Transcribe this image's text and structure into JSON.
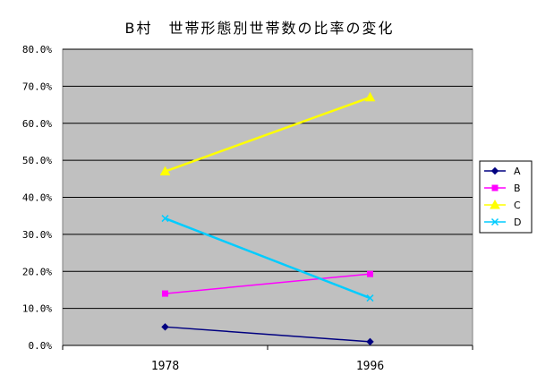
{
  "chart_data": {
    "type": "line",
    "title": "B村　世帯形態別世帯数の比率の変化",
    "categories": [
      "1978",
      "1996"
    ],
    "ylim": [
      0,
      80
    ],
    "yticks": [
      "0.0%",
      "10.0%",
      "20.0%",
      "30.0%",
      "40.0%",
      "50.0%",
      "60.0%",
      "70.0%",
      "80.0%"
    ],
    "grid": true,
    "legend_position": "right",
    "series": [
      {
        "name": "A",
        "values": [
          5.0,
          1.0
        ],
        "color": "#000080",
        "marker": "diamond"
      },
      {
        "name": "B",
        "values": [
          14.0,
          19.3
        ],
        "color": "#FF00FF",
        "marker": "square"
      },
      {
        "name": "C",
        "values": [
          47.0,
          67.0
        ],
        "color": "#FFFF00",
        "marker": "triangle"
      },
      {
        "name": "D",
        "values": [
          34.3,
          12.8
        ],
        "color": "#00CCFF",
        "marker": "x"
      }
    ],
    "plot_background": "#C0C0C0"
  }
}
